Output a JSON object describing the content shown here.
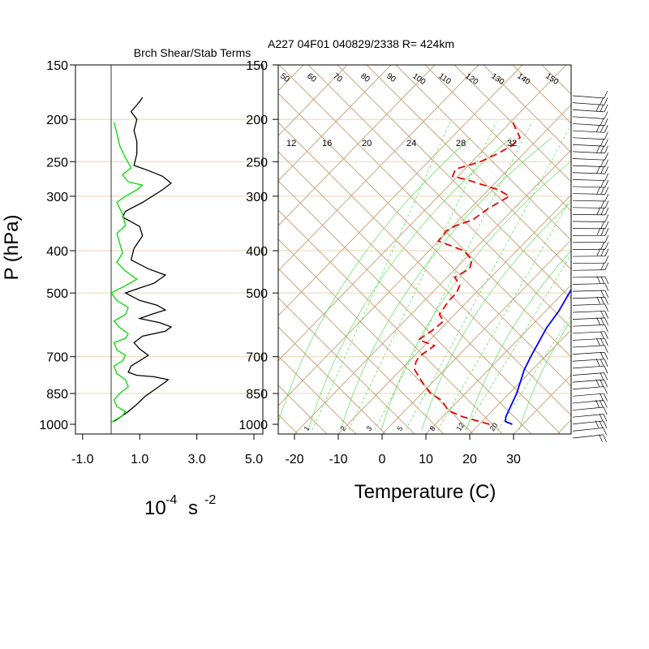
{
  "chart_data": [
    {
      "type": "line",
      "title": "Brch Shear/Stab Terms",
      "ylabel": "P (hPa)",
      "xlabel": "10",
      "xlabel_exp": "-4",
      "xlabel_unit": "s",
      "xlabel_unit_exp": "-2",
      "y_log_scale": true,
      "ylim": [
        1000,
        150
      ],
      "xlim": [
        -1.0,
        5.0
      ],
      "yticks": [
        1000,
        850,
        700,
        500,
        400,
        300,
        250,
        200,
        150
      ],
      "ytick_labels": [
        "1000",
        "850",
        "700",
        "500",
        "400",
        "300",
        "250",
        "200",
        "150"
      ],
      "xticks": [
        -1.0,
        1.0,
        3.0,
        5.0
      ],
      "xtick_labels": [
        "-1.0",
        "1.0",
        "3.0",
        "5.0"
      ],
      "zero_line": 0,
      "grid": true,
      "series": [
        {
          "color": "#000000",
          "points": [
            [
              0.1,
              985
            ],
            [
              0.3,
              965
            ],
            [
              0.6,
              935
            ],
            [
              0.9,
              900
            ],
            [
              1.2,
              862
            ],
            [
              1.5,
              835
            ],
            [
              1.9,
              800
            ],
            [
              2.0,
              790
            ],
            [
              1.5,
              778
            ],
            [
              0.9,
              772
            ],
            [
              0.6,
              760
            ],
            [
              0.7,
              735
            ],
            [
              1.0,
              715
            ],
            [
              1.3,
              695
            ],
            [
              1.0,
              672
            ],
            [
              0.8,
              650
            ],
            [
              1.1,
              628
            ],
            [
              1.9,
              612
            ],
            [
              2.1,
              598
            ],
            [
              1.7,
              585
            ],
            [
              1.0,
              572
            ],
            [
              1.4,
              560
            ],
            [
              1.9,
              547
            ],
            [
              1.6,
              533
            ],
            [
              1.0,
              520
            ],
            [
              0.5,
              500
            ],
            [
              1.0,
              487
            ],
            [
              1.5,
              475
            ],
            [
              1.9,
              455
            ],
            [
              1.3,
              440
            ],
            [
              0.7,
              420
            ],
            [
              0.8,
              395
            ],
            [
              1.1,
              370
            ],
            [
              1.0,
              352
            ],
            [
              0.4,
              335
            ],
            [
              0.5,
              325
            ],
            [
              1.1,
              310
            ],
            [
              1.8,
              290
            ],
            [
              2.1,
              280
            ],
            [
              1.8,
              270
            ],
            [
              1.3,
              262
            ],
            [
              0.8,
              255
            ],
            [
              0.9,
              240
            ],
            [
              0.9,
              225
            ],
            [
              0.8,
              212
            ],
            [
              0.9,
              200
            ],
            [
              0.7,
              192
            ],
            [
              1.0,
              182
            ],
            [
              1.1,
              178
            ]
          ]
        },
        {
          "color": "#00dd00",
          "points": [
            [
              0.0,
              990
            ],
            [
              0.4,
              955
            ],
            [
              0.5,
              935
            ],
            [
              0.2,
              910
            ],
            [
              0.1,
              880
            ],
            [
              0.3,
              850
            ],
            [
              0.6,
              820
            ],
            [
              0.5,
              790
            ],
            [
              0.2,
              765
            ],
            [
              0.1,
              735
            ],
            [
              0.4,
              715
            ],
            [
              0.5,
              695
            ],
            [
              0.2,
              675
            ],
            [
              0.1,
              650
            ],
            [
              0.5,
              635
            ],
            [
              0.6,
              620
            ],
            [
              0.3,
              600
            ],
            [
              0.1,
              580
            ],
            [
              0.5,
              560
            ],
            [
              0.6,
              540
            ],
            [
              0.2,
              520
            ],
            [
              0.0,
              500
            ],
            [
              0.4,
              485
            ],
            [
              0.9,
              465
            ],
            [
              0.5,
              445
            ],
            [
              0.2,
              425
            ],
            [
              0.4,
              405
            ],
            [
              0.3,
              385
            ],
            [
              0.2,
              365
            ],
            [
              0.5,
              350
            ],
            [
              0.4,
              330
            ],
            [
              0.2,
              310
            ],
            [
              0.5,
              300
            ],
            [
              0.9,
              290
            ],
            [
              1.1,
              283
            ],
            [
              0.6,
              278
            ],
            [
              0.4,
              268
            ],
            [
              0.7,
              258
            ],
            [
              0.5,
              245
            ],
            [
              0.3,
              230
            ],
            [
              0.2,
              215
            ],
            [
              0.1,
              203
            ]
          ]
        }
      ]
    },
    {
      "type": "line",
      "title": "A227 04F01 040829/2338 R= 424km",
      "xlabel": "Temperature (C)",
      "y_log_scale": true,
      "ylim": [
        1000,
        150
      ],
      "xlim": [
        -24,
        43
      ],
      "yticks": [
        1000,
        850,
        700,
        500,
        400,
        300,
        250,
        200,
        150
      ],
      "ytick_labels": [
        "1000",
        "850",
        "700",
        "500",
        "400",
        "300",
        "250",
        "200",
        "150"
      ],
      "xticks": [
        -20,
        -10,
        0,
        10,
        20,
        30
      ],
      "xtick_labels": [
        "-20",
        "-10",
        "0",
        "10",
        "20",
        "30"
      ],
      "skew_t": true,
      "isotherm_labels": [
        "-20",
        "-10",
        "0",
        "10",
        "20",
        "30"
      ],
      "dry_adiabat_labels": [
        "50",
        "60",
        "70",
        "80",
        "90",
        "100",
        "110",
        "120",
        "130",
        "140",
        "150"
      ],
      "mixing_ratio_top_labels": [
        "12",
        "16",
        "20",
        "24",
        "28",
        "32"
      ],
      "mixing_ratio_bottom_labels": [
        "1",
        "2",
        "3",
        "5",
        "8",
        "12",
        "20"
      ],
      "grid": true,
      "series": [
        {
          "name": "",
          "color": "#0000ff",
          "style": "solid",
          "points": [
            [
              29.7,
              1000
            ],
            [
              27.5,
              985
            ],
            [
              26.5,
              960
            ],
            [
              25.5,
              920
            ],
            [
              23.7,
              850
            ],
            [
              20.0,
              750
            ],
            [
              18.5,
              700
            ],
            [
              15.5,
              600
            ],
            [
              14.5,
              550
            ],
            [
              12.0,
              480
            ],
            [
              10.0,
              420
            ],
            [
              7.5,
              380
            ],
            [
              2.0,
              320
            ],
            [
              -2.0,
              290
            ],
            [
              -4.5,
              260
            ],
            [
              -9.0,
              235
            ],
            [
              -14.0,
              210
            ],
            [
              -20.5,
              190
            ],
            [
              -26.5,
              175
            ]
          ]
        },
        {
          "name": "",
          "color": "#ee0000",
          "style": "dashed",
          "points": [
            [
              24.5,
              1000
            ],
            [
              16.5,
              960
            ],
            [
              12.0,
              930
            ],
            [
              8.0,
              880
            ],
            [
              4.0,
              850
            ],
            [
              -0.5,
              800
            ],
            [
              -5.0,
              750
            ],
            [
              -6.5,
              720
            ],
            [
              -7.0,
              700
            ],
            [
              -6.0,
              660
            ],
            [
              -11.0,
              640
            ],
            [
              -10.0,
              610
            ],
            [
              -9.5,
              580
            ],
            [
              -12.0,
              560
            ],
            [
              -13.0,
              520
            ],
            [
              -13.0,
              500
            ],
            [
              -14.0,
              480
            ],
            [
              -17.0,
              460
            ],
            [
              -15.5,
              440
            ],
            [
              -17.0,
              420
            ],
            [
              -21.0,
              400
            ],
            [
              -29.0,
              380
            ],
            [
              -29.5,
              360
            ],
            [
              -28.5,
              350
            ],
            [
              -26.0,
              340
            ],
            [
              -25.0,
              320
            ],
            [
              -23.0,
              300
            ],
            [
              -27.0,
              290
            ],
            [
              -36.5,
              275
            ],
            [
              -40.5,
              270
            ],
            [
              -41.5,
              260
            ],
            [
              -37.5,
              250
            ],
            [
              -35.5,
              240
            ],
            [
              -34.0,
              230
            ],
            [
              -34.0,
              220
            ],
            [
              -37.0,
              210
            ],
            [
              -40.0,
              200
            ]
          ]
        }
      ],
      "wind_barbs_count": 50
    }
  ]
}
